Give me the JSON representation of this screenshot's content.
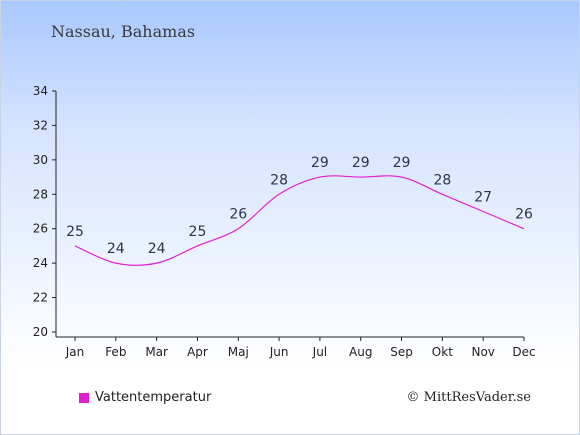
{
  "header": {
    "title": "Nassau, Bahamas"
  },
  "legend": {
    "label": "Vattentemperatur"
  },
  "credit": {
    "text": "© MittResVader.se"
  },
  "colors": {
    "series": "#e020d0",
    "axis": "#222222"
  },
  "chart_data": {
    "type": "line",
    "title": "Nassau, Bahamas",
    "xlabel": "",
    "ylabel": "",
    "categories": [
      "Jan",
      "Feb",
      "Mar",
      "Apr",
      "Maj",
      "Jun",
      "Jul",
      "Aug",
      "Sep",
      "Okt",
      "Nov",
      "Dec"
    ],
    "series": [
      {
        "name": "Vattentemperatur",
        "values": [
          25,
          24,
          24,
          25,
          26,
          28,
          29,
          29,
          29,
          28,
          27,
          26
        ]
      }
    ],
    "ylim": [
      20,
      34
    ],
    "yticks": [
      20,
      22,
      24,
      26,
      28,
      30,
      32,
      34
    ],
    "grid": false,
    "legend_position": "bottom-left"
  }
}
